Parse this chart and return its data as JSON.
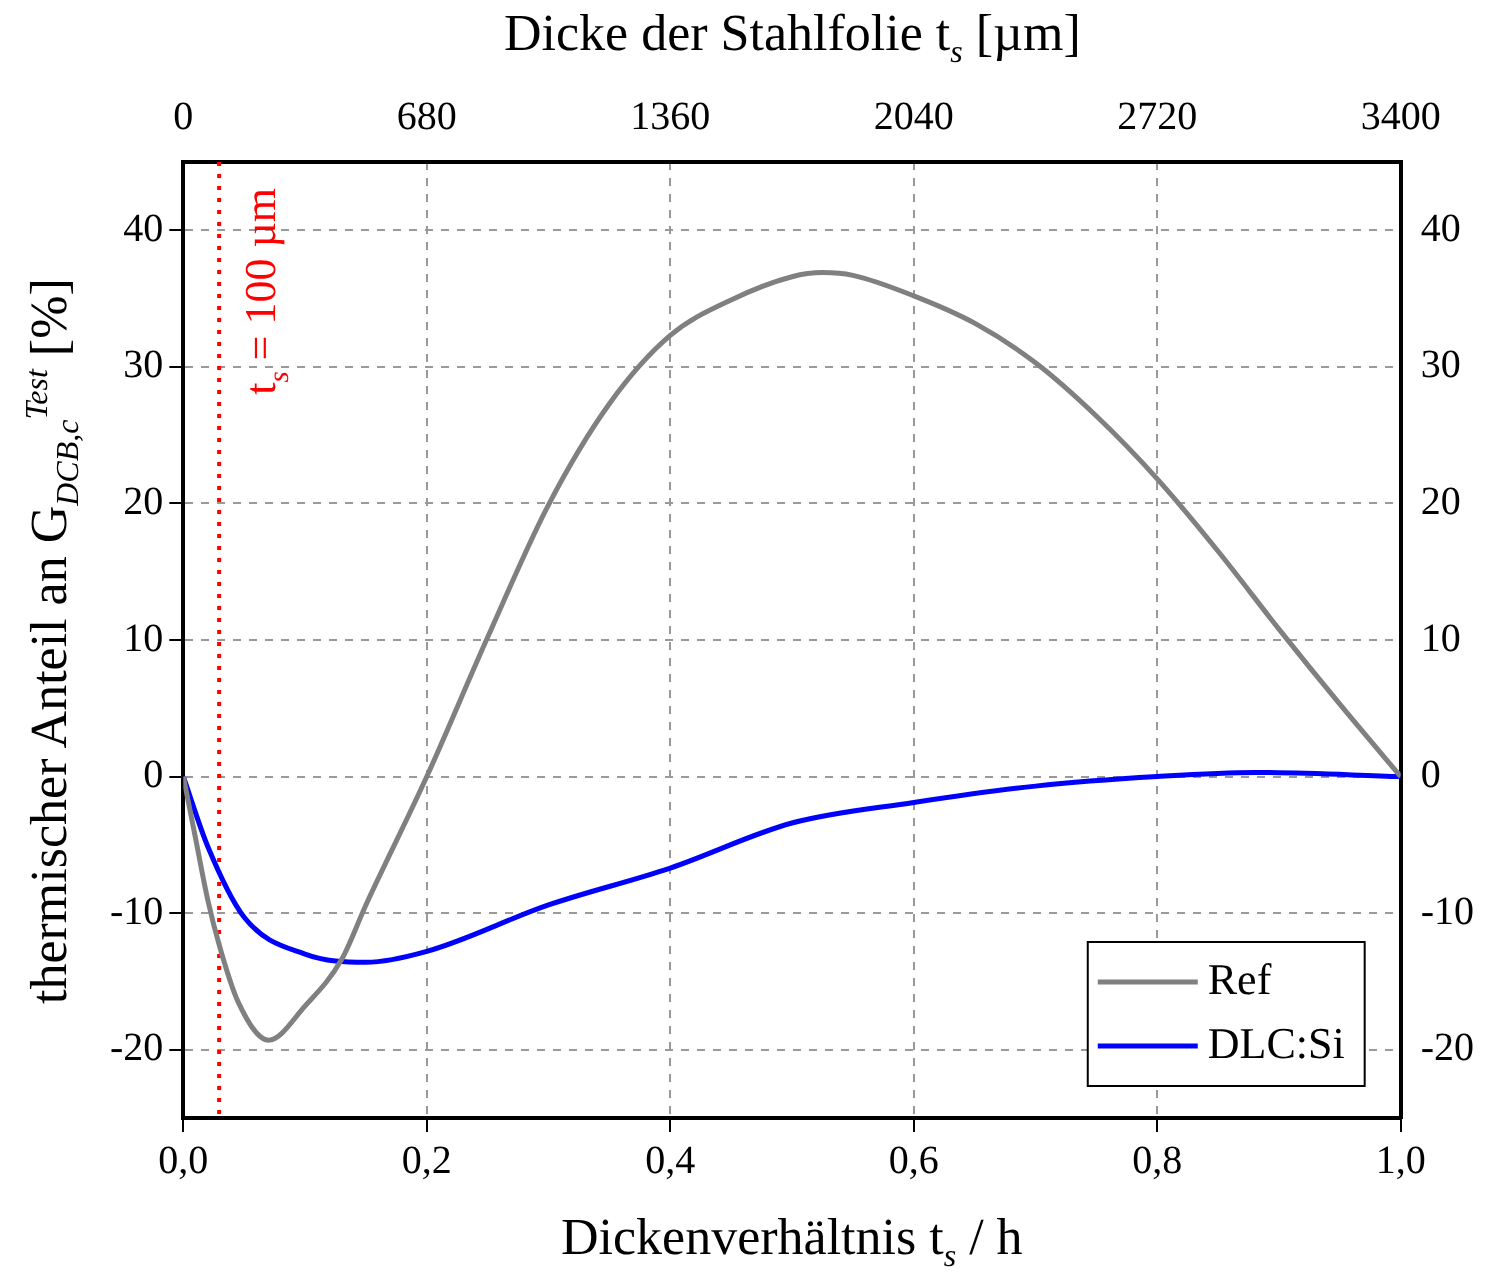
{
  "chart_data": {
    "type": "line",
    "xlabel": "Dickenverhältnis t$_{s}$ / h",
    "x2label": "Dicke der Stahlfolie t$_{s}$ [µm]",
    "ylabel": "thermischer Anteil an G$_{DCB,c}$$^{Test}$ [%]",
    "xlim": [
      0,
      1
    ],
    "xticks": [
      {
        "value": 0,
        "label": "0,0"
      },
      {
        "value": 0.2,
        "label": "0,2"
      },
      {
        "value": 0.4,
        "label": "0,4"
      },
      {
        "value": 0.6,
        "label": "0,6"
      },
      {
        "value": 0.8,
        "label": "0,8"
      },
      {
        "value": 1,
        "label": "1,0"
      }
    ],
    "x2lim": [
      0,
      3400
    ],
    "x2ticks": [
      0,
      680,
      1360,
      2040,
      2720,
      3400
    ],
    "ylim": [
      -25,
      45
    ],
    "yticks": [
      -20,
      -10,
      0,
      10,
      20,
      30,
      40
    ],
    "y2lim": [
      -25,
      45
    ],
    "y2ticks": [
      -20,
      -10,
      0,
      10,
      20,
      30,
      40
    ],
    "series": [
      {
        "name": "Ref",
        "color": "#808080",
        "x": [
          0,
          0.01,
          0.02,
          0.03,
          0.045,
          0.07,
          0.1,
          0.13,
          0.15,
          0.2,
          0.25,
          0.3,
          0.35,
          0.4,
          0.45,
          0.5,
          0.525,
          0.55,
          0.6,
          0.65,
          0.7,
          0.75,
          0.8,
          0.85,
          0.9,
          0.95,
          1
        ],
        "values": [
          0,
          -4.5,
          -9,
          -12.5,
          -16.5,
          -19.3,
          -16.8,
          -13.4,
          -9.4,
          0,
          10.2,
          19.9,
          27.3,
          32.3,
          34.9,
          36.6,
          36.9,
          36.7,
          35.2,
          33.2,
          30.3,
          26.4,
          21.8,
          16.5,
          10.8,
          5.3,
          0
        ]
      },
      {
        "name": "DLC:Si",
        "color": "#0000ff",
        "x": [
          0,
          0.02,
          0.05,
          0.1,
          0.15,
          0.2,
          0.3,
          0.4,
          0.5,
          0.6,
          0.7,
          0.8,
          0.88,
          1
        ],
        "values": [
          0,
          -5.1,
          -10.3,
          -13,
          -13.6,
          -12.8,
          -9.4,
          -6.7,
          -3.4,
          -1.9,
          -0.7,
          0,
          0.3,
          0
        ]
      }
    ],
    "ref_lines": [
      {
        "axis": "x2",
        "value": 100,
        "label": "t$_{s}$ = 100 µm",
        "color": "#ff0000",
        "line_style": "dotted"
      }
    ],
    "grid": true,
    "legend": "bottom right",
    "marker": "none",
    "line_style": "solid"
  }
}
